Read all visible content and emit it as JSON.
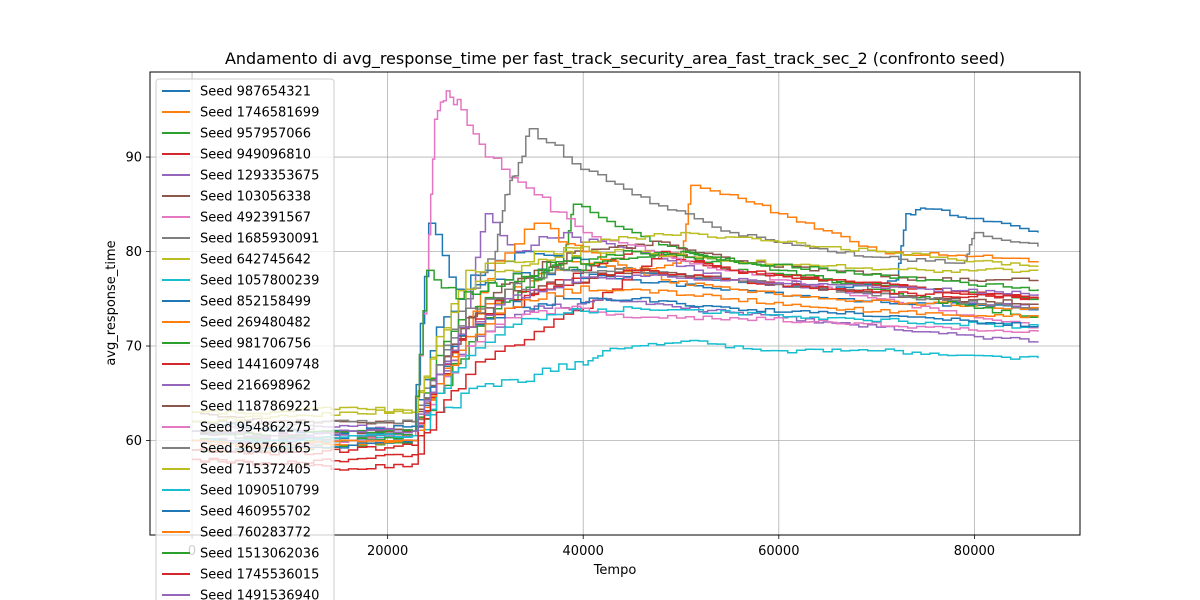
{
  "chart_data": {
    "type": "line",
    "title": "Andamento di avg_response_time per fast_track_security_area_fast_track_sec_2 (confronto seed)",
    "xlabel": "Tempo",
    "ylabel": "avg_response_time",
    "xlim": [
      -4300,
      90800
    ],
    "ylim": [
      50,
      99
    ],
    "xticks": [
      0,
      20000,
      40000,
      60000,
      80000
    ],
    "xtick_labels": [
      "0",
      "20000",
      "40000",
      "60000",
      "80000"
    ],
    "yticks": [
      60,
      70,
      80,
      90
    ],
    "ytick_labels": [
      "60",
      "70",
      "80",
      "90"
    ],
    "grid": true,
    "legend_position": "top-left",
    "series": [
      {
        "name": "Seed 987654321",
        "color": "#1f77b4",
        "x": [
          0,
          8000,
          16000,
          22500,
          24200,
          27000,
          30000,
          34000,
          38000,
          45000,
          55000,
          65000,
          72000,
          73000,
          75000,
          80000,
          86500
        ],
        "y": [
          61,
          60,
          60.5,
          61,
          83,
          76,
          78,
          80,
          79,
          78,
          77,
          76,
          77,
          84,
          84.5,
          83.5,
          82
        ]
      },
      {
        "name": "Seed 1746581699",
        "color": "#ff7f0e",
        "x": [
          0,
          8000,
          16000,
          22500,
          25000,
          28000,
          32000,
          38000,
          45000,
          50000,
          51000,
          55000,
          60000,
          70000,
          80000,
          86500
        ],
        "y": [
          60,
          59,
          60,
          60.5,
          66,
          72,
          76,
          79,
          78,
          79,
          87,
          86,
          84,
          80,
          79.5,
          79
        ]
      },
      {
        "name": "Seed 957957066",
        "color": "#2ca02c",
        "x": [
          0,
          8000,
          16000,
          22500,
          25000,
          30000,
          35000,
          38000,
          39000,
          45000,
          55000,
          65000,
          75000,
          86500
        ],
        "y": [
          59,
          59,
          59.5,
          60,
          65,
          73,
          77,
          80,
          85,
          82,
          78,
          77,
          76,
          75
        ]
      },
      {
        "name": "Seed 949096810",
        "color": "#d62728",
        "x": [
          0,
          8000,
          16000,
          22500,
          25000,
          28000,
          32000,
          36000,
          40000,
          45000,
          55000,
          65000,
          75000,
          86500
        ],
        "y": [
          58,
          57.5,
          58,
          58.5,
          66,
          72,
          74,
          76,
          78,
          80,
          78,
          77,
          76,
          75
        ]
      },
      {
        "name": "Seed 1293353675",
        "color": "#9467bd",
        "x": [
          0,
          8000,
          16000,
          22500,
          25000,
          28000,
          30000,
          33000,
          38000,
          45000,
          55000,
          65000,
          75000,
          86500
        ],
        "y": [
          62,
          61,
          61.5,
          61,
          67,
          74,
          84,
          80,
          82,
          80,
          77,
          76,
          75,
          74
        ]
      },
      {
        "name": "Seed 103056338",
        "color": "#8c564b",
        "x": [
          0,
          8000,
          16000,
          22500,
          25000,
          30000,
          35000,
          40000,
          48000,
          55000,
          65000,
          75000,
          86500
        ],
        "y": [
          63,
          62,
          62,
          62,
          68,
          75,
          78,
          80,
          81,
          79,
          78,
          77,
          77
        ]
      },
      {
        "name": "Seed 492391567",
        "color": "#e377c2",
        "x": [
          0,
          8000,
          16000,
          22500,
          24000,
          24800,
          26000,
          27500,
          30000,
          35000,
          40000,
          50000,
          60000,
          70000,
          80000,
          86500
        ],
        "y": [
          61,
          60.5,
          60,
          60.5,
          78,
          94,
          97,
          95,
          90,
          86,
          82,
          79,
          77,
          75,
          73,
          72
        ]
      },
      {
        "name": "Seed 1685930091",
        "color": "#7f7f7f",
        "x": [
          0,
          8000,
          16000,
          22500,
          25000,
          28000,
          31000,
          32000,
          33000,
          34500,
          38000,
          45000,
          55000,
          65000,
          75000,
          79000,
          80000,
          86500
        ],
        "y": [
          61,
          60,
          60.5,
          61,
          68,
          75,
          80,
          86,
          88,
          93,
          90,
          86,
          82,
          80,
          79,
          79,
          82,
          80.5
        ]
      },
      {
        "name": "Seed 642745642",
        "color": "#bcbd22",
        "x": [
          0,
          8000,
          16000,
          22500,
          25000,
          28000,
          32000,
          36000,
          40000,
          50000,
          60000,
          70000,
          80000,
          86500
        ],
        "y": [
          63,
          63,
          63.5,
          63,
          70,
          78,
          79,
          80,
          81,
          82,
          81,
          80,
          79,
          78.5
        ]
      },
      {
        "name": "Seed 1057800239",
        "color": "#17becf",
        "x": [
          0,
          8000,
          16000,
          22500,
          25000,
          30000,
          35000,
          40000,
          42000,
          45000,
          50000,
          60000,
          70000,
          80000,
          86500
        ],
        "y": [
          60,
          59.5,
          60,
          60.5,
          63,
          66,
          67,
          68,
          69.5,
          70,
          70.5,
          69.5,
          69.5,
          69,
          68.7
        ]
      },
      {
        "name": "Seed 852158499",
        "color": "#1f77b4",
        "x": [
          0,
          8000,
          16000,
          22500,
          25000,
          28000,
          32000,
          38000,
          45000,
          55000,
          65000,
          75000,
          86500
        ],
        "y": [
          62,
          61,
          61,
          61.5,
          72,
          76,
          77,
          78,
          77,
          76,
          75,
          74.5,
          74
        ]
      },
      {
        "name": "Seed 269480482",
        "color": "#ff7f0e",
        "x": [
          0,
          8000,
          16000,
          22500,
          25000,
          28000,
          31000,
          35000,
          40000,
          48000,
          55000,
          65000,
          75000,
          86500
        ],
        "y": [
          59,
          59,
          59.5,
          60,
          66,
          72,
          79,
          83,
          80,
          77,
          76,
          75,
          74.5,
          74
        ]
      },
      {
        "name": "Seed 981706756",
        "color": "#2ca02c",
        "x": [
          0,
          8000,
          16000,
          22500,
          25000,
          28000,
          32000,
          36000,
          42000,
          50000,
          60000,
          70000,
          80000,
          86500
        ],
        "y": [
          60,
          60,
          60,
          60.5,
          69,
          74,
          76,
          78,
          79,
          80,
          78,
          76,
          74,
          73
        ]
      },
      {
        "name": "Seed 1441609748",
        "color": "#d62728",
        "x": [
          0,
          8000,
          16000,
          22500,
          25000,
          28000,
          32000,
          36000,
          40000,
          44000,
          48000,
          55000,
          65000,
          75000,
          86500
        ],
        "y": [
          58,
          57.5,
          57,
          57.5,
          63,
          67,
          70,
          72,
          74,
          77,
          80,
          78,
          77,
          76,
          75
        ]
      },
      {
        "name": "Seed 216698962",
        "color": "#9467bd",
        "x": [
          0,
          8000,
          16000,
          22500,
          25000,
          28000,
          32000,
          36000,
          42000,
          50000,
          60000,
          70000,
          80000,
          86500
        ],
        "y": [
          60,
          60,
          60.5,
          60.5,
          66,
          70,
          73,
          74,
          75,
          74,
          73,
          72,
          71,
          70.5
        ]
      },
      {
        "name": "Seed 1187869221",
        "color": "#8c564b",
        "x": [
          0,
          8000,
          16000,
          22500,
          25000,
          28000,
          32000,
          38000,
          45000,
          55000,
          65000,
          75000,
          86500
        ],
        "y": [
          61,
          60.5,
          61,
          61,
          67,
          73,
          75,
          77,
          78,
          77,
          76,
          75,
          74.5
        ]
      },
      {
        "name": "Seed 954862275",
        "color": "#e377c2",
        "x": [
          0,
          8000,
          16000,
          22500,
          25000,
          28000,
          32000,
          38000,
          45000,
          55000,
          65000,
          75000,
          86500
        ],
        "y": [
          60,
          59.5,
          60,
          60,
          65,
          70,
          73,
          74,
          73,
          73,
          72.5,
          72,
          71.5
        ]
      },
      {
        "name": "Seed 369766165",
        "color": "#7f7f7f",
        "x": [
          0,
          8000,
          16000,
          22500,
          25000,
          28000,
          32000,
          38000,
          45000,
          55000,
          65000,
          75000,
          86500
        ],
        "y": [
          62,
          61.5,
          62,
          62,
          68,
          74,
          76,
          78,
          78,
          77,
          76,
          75,
          74
        ]
      },
      {
        "name": "Seed 715372405",
        "color": "#bcbd22",
        "x": [
          0,
          8000,
          16000,
          22500,
          25000,
          28000,
          32000,
          38000,
          45000,
          55000,
          65000,
          75000,
          86500
        ],
        "y": [
          62,
          62.5,
          63,
          63,
          71,
          76,
          78,
          80,
          80,
          79,
          78.5,
          78,
          78
        ]
      },
      {
        "name": "Seed 1090510799",
        "color": "#17becf",
        "x": [
          0,
          8000,
          16000,
          22500,
          25000,
          28000,
          32000,
          38000,
          45000,
          55000,
          65000,
          75000,
          86500
        ],
        "y": [
          60,
          60,
          60.5,
          60.5,
          65,
          69,
          72,
          73.5,
          74,
          73.5,
          73,
          72.5,
          72
        ]
      },
      {
        "name": "Seed 460955702",
        "color": "#1f77b4",
        "x": [
          0,
          8000,
          16000,
          22500,
          25000,
          28000,
          32000,
          38000,
          45000,
          55000,
          65000,
          75000,
          86500
        ],
        "y": [
          59,
          59,
          59.5,
          60,
          67,
          72,
          74,
          75,
          75,
          74,
          73.5,
          73,
          72
        ]
      },
      {
        "name": "Seed 760283772",
        "color": "#ff7f0e",
        "x": [
          0,
          8000,
          16000,
          22500,
          25000,
          28000,
          32000,
          38000,
          45000,
          55000,
          65000,
          75000,
          86500
        ],
        "y": [
          60,
          59.5,
          60,
          60,
          66,
          71,
          74,
          76,
          76,
          75,
          74,
          73.5,
          73
        ]
      },
      {
        "name": "Seed 1513062036",
        "color": "#2ca02c",
        "x": [
          0,
          8000,
          16000,
          22500,
          24000,
          27000,
          32000,
          38000,
          45000,
          55000,
          65000,
          75000,
          86500
        ],
        "y": [
          61,
          60.5,
          61,
          61,
          78,
          75,
          77,
          79,
          80,
          79,
          78,
          77,
          76
        ]
      },
      {
        "name": "Seed 1745536015",
        "color": "#d62728",
        "x": [
          0,
          8000,
          16000,
          22500,
          25000,
          28000,
          32000,
          38000,
          45000,
          55000,
          65000,
          75000,
          86500
        ],
        "y": [
          59,
          58.5,
          59,
          59.5,
          67,
          72,
          75,
          77,
          78,
          77,
          76,
          75.5,
          75
        ]
      },
      {
        "name": "Seed 1491536940",
        "color": "#9467bd",
        "x": [
          0,
          8000,
          16000,
          22500,
          25000,
          28000,
          32000,
          38000,
          45000,
          55000,
          65000,
          75000,
          86500
        ],
        "y": [
          61,
          60.5,
          61,
          61,
          67,
          72,
          75,
          77,
          77.5,
          77,
          76.5,
          76,
          75.5
        ]
      }
    ]
  }
}
